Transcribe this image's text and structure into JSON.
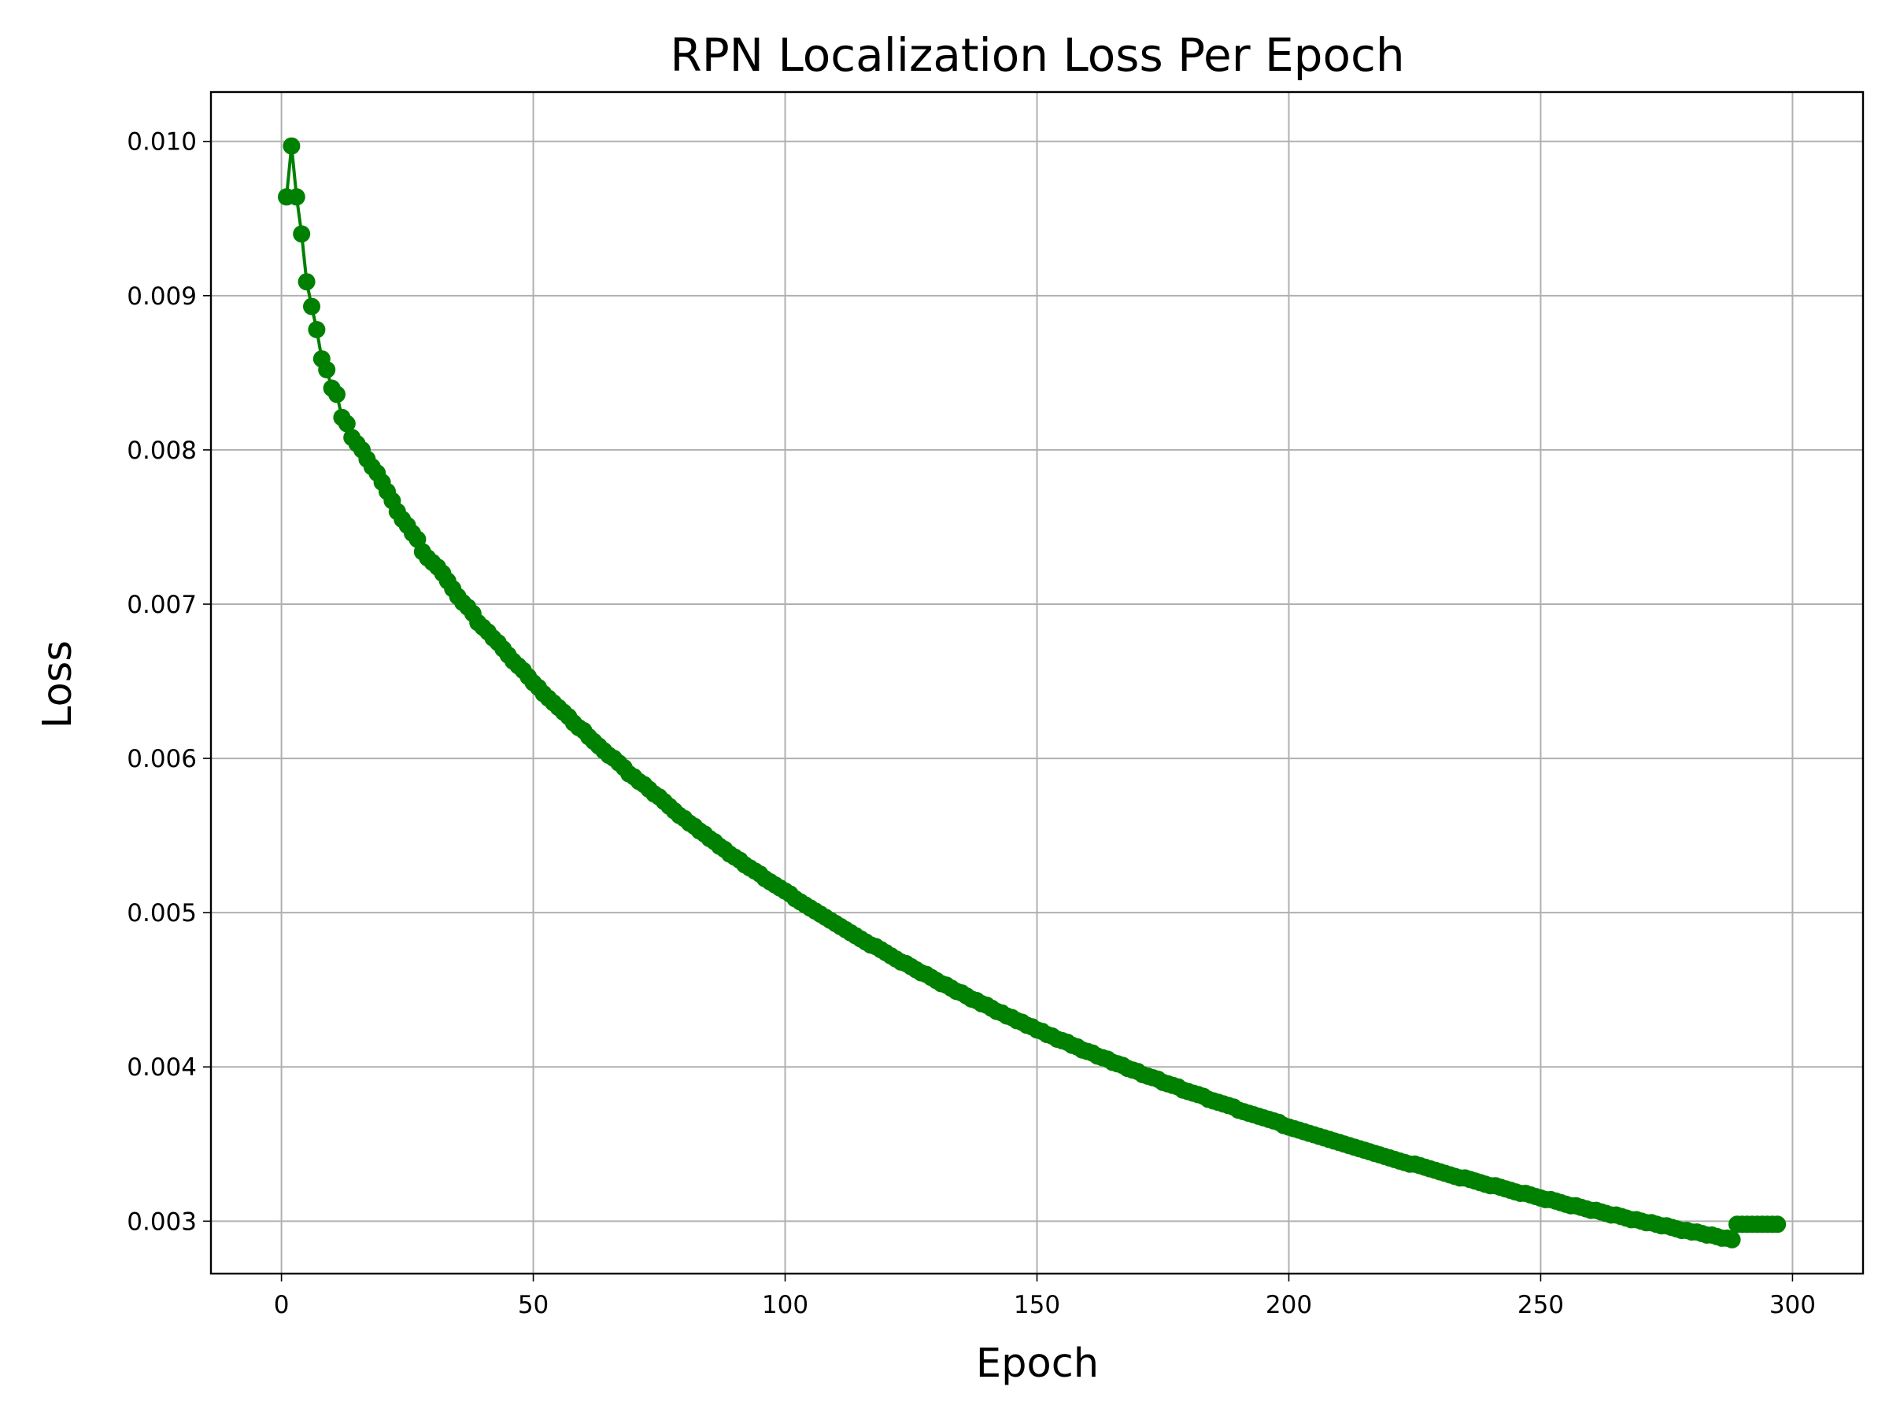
{
  "chart_data": {
    "type": "line",
    "title": "RPN Localization Loss Per Epoch",
    "xlabel": "Epoch",
    "ylabel": "Loss",
    "xlim": [
      -14,
      314
    ],
    "ylim": [
      0.00266,
      0.01032
    ],
    "xticks": [
      0,
      50,
      100,
      150,
      200,
      250,
      300
    ],
    "xtick_labels": [
      "0",
      "50",
      "100",
      "150",
      "200",
      "250",
      "300"
    ],
    "yticks": [
      0.003,
      0.004,
      0.005,
      0.006,
      0.007,
      0.008,
      0.009,
      0.01
    ],
    "ytick_labels": [
      "0.003",
      "0.004",
      "0.005",
      "0.006",
      "0.007",
      "0.008",
      "0.009",
      "0.010"
    ],
    "grid": true,
    "series": [
      {
        "color": "#008000",
        "marker": "circle",
        "x_start": 1,
        "x_step": 1,
        "values": [
          0.00964,
          0.00997,
          0.00964,
          0.0094,
          0.00909,
          0.00893,
          0.00878,
          0.00859,
          0.00852,
          0.0084,
          0.00836,
          0.00821,
          0.00817,
          0.00808,
          0.00804,
          0.008,
          0.00794,
          0.00789,
          0.00785,
          0.00779,
          0.00773,
          0.00767,
          0.0076,
          0.00755,
          0.00751,
          0.00746,
          0.00742,
          0.00734,
          0.0073,
          0.00727,
          0.00724,
          0.0072,
          0.00715,
          0.0071,
          0.00705,
          0.00701,
          0.00698,
          0.00694,
          0.00688,
          0.00685,
          0.00682,
          0.00678,
          0.00675,
          0.00671,
          0.00667,
          0.00663,
          0.0066,
          0.00657,
          0.00653,
          0.00649,
          0.00646,
          0.00642,
          0.00639,
          0.00636,
          0.00633,
          0.0063,
          0.00627,
          0.00623,
          0.0062,
          0.00618,
          0.00614,
          0.00611,
          0.00608,
          0.00605,
          0.00602,
          0.006,
          0.00597,
          0.00594,
          0.0059,
          0.00588,
          0.00585,
          0.00583,
          0.0058,
          0.00577,
          0.00575,
          0.00572,
          0.00569,
          0.00566,
          0.00563,
          0.00561,
          0.00558,
          0.00556,
          0.00553,
          0.00551,
          0.00548,
          0.00546,
          0.00543,
          0.00541,
          0.00538,
          0.00536,
          0.00534,
          0.00531,
          0.00529,
          0.00527,
          0.00525,
          0.00522,
          0.0052,
          0.00518,
          0.00516,
          0.00514,
          0.00512,
          0.00509,
          0.00507,
          0.00505,
          0.00503,
          0.00501,
          0.00499,
          0.00497,
          0.00495,
          0.00493,
          0.00491,
          0.00489,
          0.00487,
          0.00485,
          0.00483,
          0.00481,
          0.00479,
          0.00478,
          0.00476,
          0.00474,
          0.00472,
          0.0047,
          0.00468,
          0.00467,
          0.00465,
          0.00463,
          0.00461,
          0.0046,
          0.00458,
          0.00456,
          0.00454,
          0.00453,
          0.00451,
          0.00449,
          0.00448,
          0.00446,
          0.00444,
          0.00443,
          0.00441,
          0.0044,
          0.00438,
          0.00436,
          0.00435,
          0.00433,
          0.00432,
          0.0043,
          0.00429,
          0.00427,
          0.00426,
          0.00424,
          0.00423,
          0.00421,
          0.0042,
          0.00418,
          0.00417,
          0.00416,
          0.00414,
          0.00413,
          0.00411,
          0.0041,
          0.00409,
          0.00407,
          0.00406,
          0.00405,
          0.00403,
          0.00402,
          0.00401,
          0.00399,
          0.00398,
          0.00397,
          0.00395,
          0.00394,
          0.00393,
          0.00392,
          0.0039,
          0.00389,
          0.00388,
          0.00387,
          0.00385,
          0.00384,
          0.00383,
          0.00382,
          0.00381,
          0.00379,
          0.00378,
          0.00377,
          0.00376,
          0.00375,
          0.00374,
          0.00372,
          0.00371,
          0.0037,
          0.00369,
          0.00368,
          0.00367,
          0.00366,
          0.00365,
          0.00364,
          0.00362,
          0.00361,
          0.0036,
          0.00359,
          0.00358,
          0.00357,
          0.00356,
          0.00355,
          0.00354,
          0.00353,
          0.00352,
          0.00351,
          0.0035,
          0.00349,
          0.00348,
          0.00347,
          0.00346,
          0.00345,
          0.00344,
          0.00343,
          0.00342,
          0.00341,
          0.0034,
          0.00339,
          0.00338,
          0.00337,
          0.00337,
          0.00336,
          0.00335,
          0.00334,
          0.00333,
          0.00332,
          0.00331,
          0.0033,
          0.00329,
          0.00328,
          0.00328,
          0.00327,
          0.00326,
          0.00325,
          0.00324,
          0.00323,
          0.00323,
          0.00322,
          0.00321,
          0.0032,
          0.00319,
          0.00318,
          0.00318,
          0.00317,
          0.00316,
          0.00315,
          0.00314,
          0.00314,
          0.00313,
          0.00312,
          0.00311,
          0.0031,
          0.0031,
          0.00309,
          0.00308,
          0.00307,
          0.00307,
          0.00306,
          0.00305,
          0.00304,
          0.00304,
          0.00303,
          0.00302,
          0.00301,
          0.00301,
          0.003,
          0.00299,
          0.00299,
          0.00298,
          0.00297,
          0.00297,
          0.00296,
          0.00295,
          0.00294,
          0.00294,
          0.00293,
          0.00293,
          0.00292,
          0.00291,
          0.00291,
          0.0029,
          0.00289,
          0.00289,
          0.00288,
          0.00298,
          0.00298,
          0.00298,
          0.00298,
          0.00298,
          0.00298,
          0.00298,
          0.00298,
          0.00298
        ]
      }
    ]
  }
}
